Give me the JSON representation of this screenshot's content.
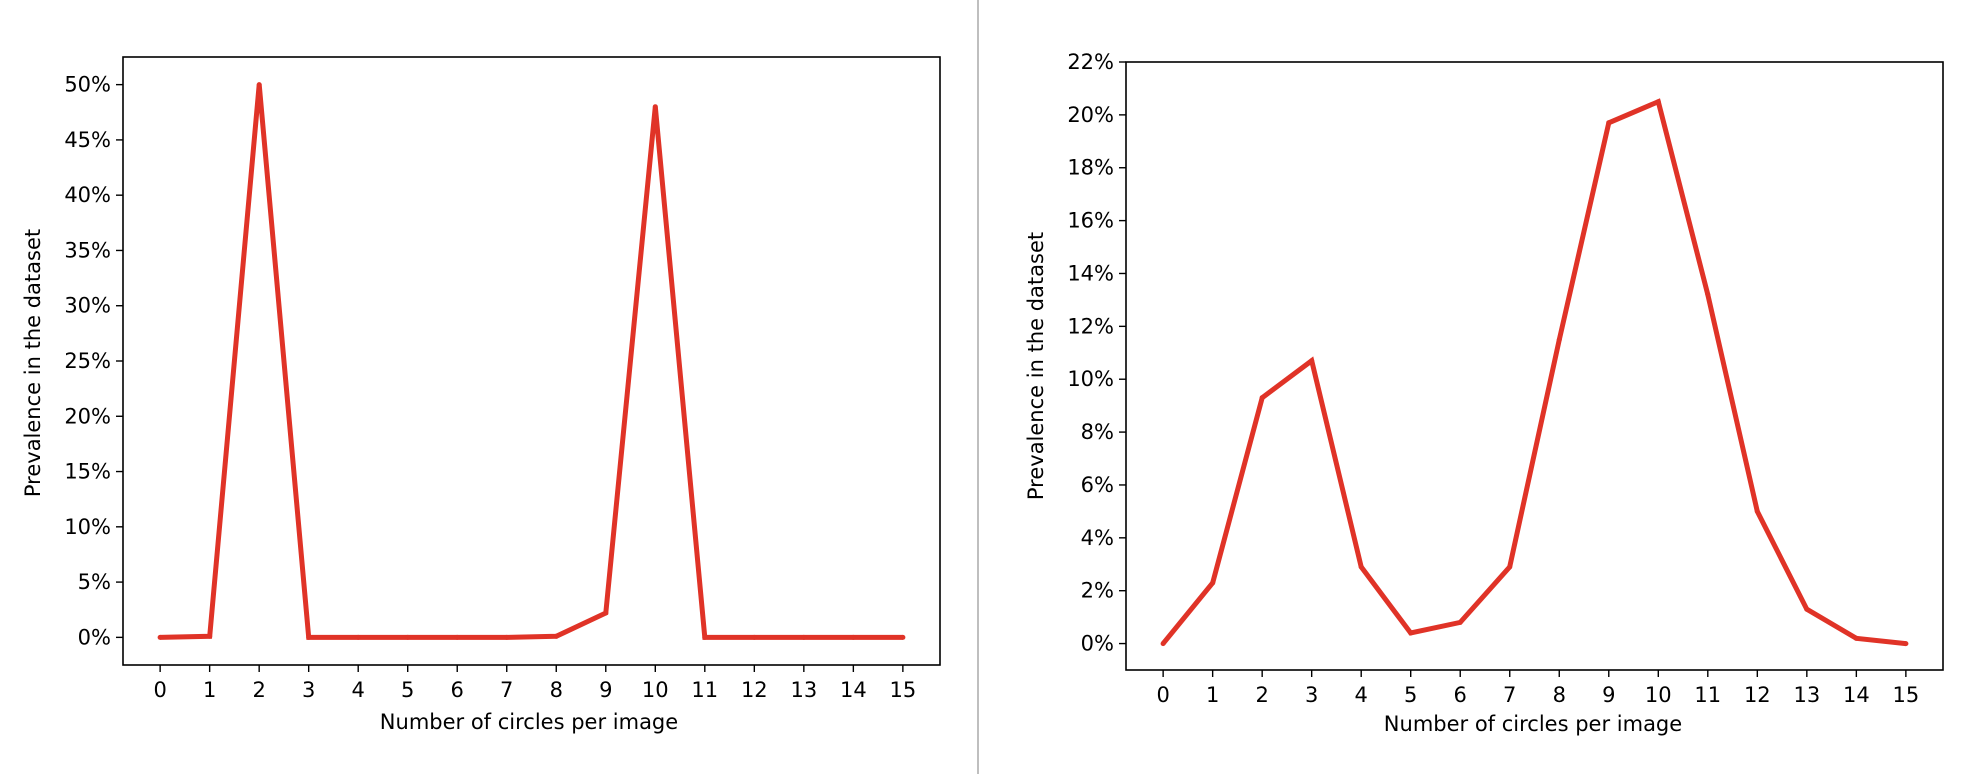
{
  "chart_data": [
    {
      "type": "line",
      "xlabel": "Number of circles per image",
      "ylabel": "Prevalence in the dataset",
      "x": [
        0,
        1,
        2,
        3,
        4,
        5,
        6,
        7,
        8,
        9,
        10,
        11,
        12,
        13,
        14,
        15
      ],
      "values": [
        0.0,
        0.1,
        50.0,
        0.0,
        0.0,
        0.0,
        0.0,
        0.0,
        0.1,
        2.2,
        48.0,
        0.0,
        0.0,
        0.0,
        0.0,
        0.0
      ],
      "y_unit": "%",
      "xlim": [
        -0.75,
        15.75
      ],
      "ylim": [
        -2.5,
        52.5
      ],
      "xticks": [
        0,
        1,
        2,
        3,
        4,
        5,
        6,
        7,
        8,
        9,
        10,
        11,
        12,
        13,
        14,
        15
      ],
      "yticks": [
        0,
        5,
        10,
        15,
        20,
        25,
        30,
        35,
        40,
        45,
        50
      ],
      "ytick_labels": [
        "0%",
        "5%",
        "10%",
        "15%",
        "20%",
        "25%",
        "30%",
        "35%",
        "40%",
        "45%",
        "50%"
      ],
      "line_color": "#e03327",
      "grid": false,
      "legend": "none"
    },
    {
      "type": "line",
      "xlabel": "Number of circles per image",
      "ylabel": "Prevalence in the dataset",
      "x": [
        0,
        1,
        2,
        3,
        4,
        5,
        6,
        7,
        8,
        9,
        10,
        11,
        12,
        13,
        14,
        15
      ],
      "values": [
        0.0,
        2.3,
        9.3,
        10.7,
        2.9,
        0.4,
        0.8,
        2.9,
        11.5,
        19.7,
        20.5,
        13.2,
        5.0,
        1.3,
        0.2,
        0.0
      ],
      "y_unit": "%",
      "xlim": [
        -0.75,
        15.75
      ],
      "ylim": [
        -1.0,
        22.0
      ],
      "xticks": [
        0,
        1,
        2,
        3,
        4,
        5,
        6,
        7,
        8,
        9,
        10,
        11,
        12,
        13,
        14,
        15
      ],
      "yticks": [
        0,
        2,
        4,
        6,
        8,
        10,
        12,
        14,
        16,
        18,
        20,
        22
      ],
      "ytick_labels": [
        "0%",
        "2%",
        "4%",
        "6%",
        "8%",
        "10%",
        "12%",
        "14%",
        "16%",
        "18%",
        "20%",
        "22%"
      ],
      "line_color": "#e03327",
      "grid": false,
      "legend": "none"
    }
  ]
}
